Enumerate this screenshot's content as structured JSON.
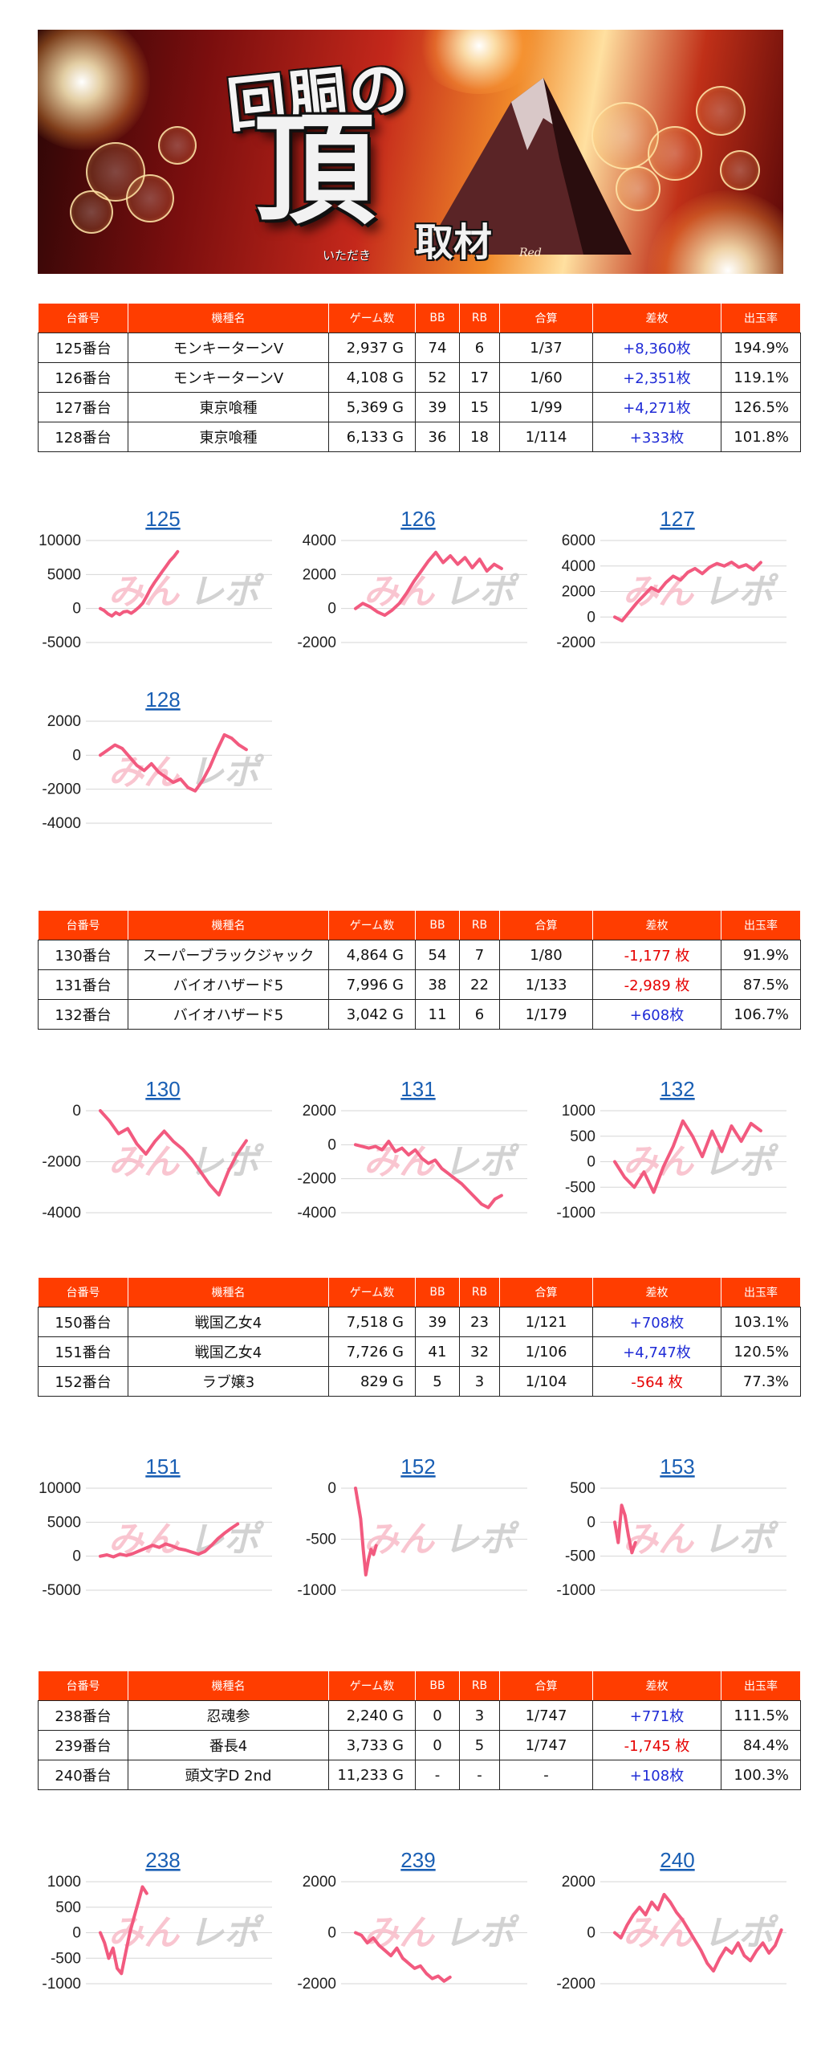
{
  "banner": {
    "title_line1": "回胴の",
    "title_big": "頂",
    "title_sub": "取材",
    "ruby": "いただき",
    "tag": "Red"
  },
  "columns": [
    "台番号",
    "機種名",
    "ゲーム数",
    "BB",
    "RB",
    "合算",
    "差枚",
    "出玉率"
  ],
  "watermark": {
    "part1": "みん",
    "part2": "レポ"
  },
  "colors": {
    "header": "#ff3d00",
    "positive": "#1f2bd6",
    "negative": "#e60000",
    "line": "#f25a7f",
    "link": "#1a5fb4"
  },
  "groups": [
    {
      "rows": [
        {
          "machine_no": "125番台",
          "name": "モンキーターンV",
          "games": "2,937 G",
          "bb": "74",
          "rb": "6",
          "combined": "1/37",
          "diff": "+8,360枚",
          "payout": "194.9%",
          "sign": "pos"
        },
        {
          "machine_no": "126番台",
          "name": "モンキーターンV",
          "games": "4,108 G",
          "bb": "52",
          "rb": "17",
          "combined": "1/60",
          "diff": "+2,351枚",
          "payout": "119.1%",
          "sign": "pos"
        },
        {
          "machine_no": "127番台",
          "name": "東京喰種",
          "games": "5,369 G",
          "bb": "39",
          "rb": "15",
          "combined": "1/99",
          "diff": "+4,271枚",
          "payout": "126.5%",
          "sign": "pos"
        },
        {
          "machine_no": "128番台",
          "name": "東京喰種",
          "games": "6,133 G",
          "bb": "36",
          "rb": "18",
          "combined": "1/114",
          "diff": "+333枚",
          "payout": "101.8%",
          "sign": "pos"
        }
      ],
      "charts": [
        {
          "title": "125",
          "ticks": [
            "10000",
            "5000",
            "0",
            "-5000"
          ],
          "ylim": [
            -5000,
            10000
          ],
          "points": [
            0,
            -300,
            -800,
            -1100,
            -600,
            -900,
            -500,
            -400,
            -700,
            -300,
            200,
            800,
            1800,
            2900,
            3800,
            4600,
            5400,
            6200,
            7000,
            7600,
            8360
          ]
        },
        {
          "title": "126",
          "ticks": [
            "4000",
            "2000",
            "0",
            "-2000"
          ],
          "ylim": [
            -2000,
            4000
          ],
          "points": [
            0,
            300,
            100,
            -200,
            -400,
            -100,
            300,
            900,
            1600,
            2200,
            2800,
            3300,
            2700,
            3100,
            2600,
            3000,
            2400,
            2900,
            2200,
            2600,
            2351
          ]
        },
        {
          "title": "127",
          "ticks": [
            "6000",
            "4000",
            "2000",
            "0",
            "-2000"
          ],
          "ylim": [
            -2000,
            6000
          ],
          "points": [
            0,
            -300,
            400,
            1100,
            1700,
            2300,
            2000,
            2700,
            3200,
            2900,
            3500,
            3800,
            3400,
            3900,
            4200,
            4000,
            4300,
            3900,
            4100,
            3700,
            4271
          ]
        },
        {
          "title": "128",
          "ticks": [
            "2000",
            "0",
            "-2000",
            "-4000"
          ],
          "ylim": [
            -4000,
            2000
          ],
          "points": [
            0,
            300,
            600,
            400,
            -100,
            -600,
            -900,
            -500,
            -1000,
            -1300,
            -1600,
            -1400,
            -1900,
            -2100,
            -1500,
            -700,
            300,
            1200,
            1000,
            600,
            333
          ]
        }
      ]
    },
    {
      "rows": [
        {
          "machine_no": "130番台",
          "name": "スーパーブラックジャック",
          "games": "4,864 G",
          "bb": "54",
          "rb": "7",
          "combined": "1/80",
          "diff": "-1,177 枚",
          "payout": "91.9%",
          "sign": "neg"
        },
        {
          "machine_no": "131番台",
          "name": "バイオハザード5",
          "games": "7,996 G",
          "bb": "38",
          "rb": "22",
          "combined": "1/133",
          "diff": "-2,989 枚",
          "payout": "87.5%",
          "sign": "neg"
        },
        {
          "machine_no": "132番台",
          "name": "バイオハザード5",
          "games": "3,042 G",
          "bb": "11",
          "rb": "6",
          "combined": "1/179",
          "diff": "+608枚",
          "payout": "106.7%",
          "sign": "pos"
        }
      ],
      "charts": [
        {
          "title": "130",
          "ticks": [
            "0",
            "-2000",
            "-4000"
          ],
          "ylim": [
            -4000,
            0
          ],
          "points": [
            0,
            -400,
            -900,
            -700,
            -1300,
            -1700,
            -1200,
            -800,
            -1200,
            -1500,
            -1900,
            -2400,
            -2900,
            -3300,
            -2400,
            -1700,
            -1177
          ]
        },
        {
          "title": "131",
          "ticks": [
            "2000",
            "0",
            "-2000",
            "-4000"
          ],
          "ylim": [
            -4000,
            2000
          ],
          "points": [
            0,
            -100,
            -200,
            -100,
            -300,
            200,
            -400,
            -200,
            -600,
            -300,
            -800,
            -1100,
            -900,
            -1400,
            -1700,
            -2000,
            -2300,
            -2700,
            -3100,
            -3500,
            -3700,
            -3200,
            -2989
          ]
        },
        {
          "title": "132",
          "ticks": [
            "1000",
            "500",
            "0",
            "-500",
            "-1000"
          ],
          "ylim": [
            -1000,
            1000
          ],
          "points": [
            0,
            -300,
            -500,
            -200,
            -600,
            -100,
            300,
            800,
            500,
            100,
            600,
            200,
            700,
            400,
            750,
            608
          ]
        }
      ]
    },
    {
      "rows": [
        {
          "machine_no": "150番台",
          "name": "戦国乙女4",
          "games": "7,518 G",
          "bb": "39",
          "rb": "23",
          "combined": "1/121",
          "diff": "+708枚",
          "payout": "103.1%",
          "sign": "pos"
        },
        {
          "machine_no": "151番台",
          "name": "戦国乙女4",
          "games": "7,726 G",
          "bb": "41",
          "rb": "32",
          "combined": "1/106",
          "diff": "+4,747枚",
          "payout": "120.5%",
          "sign": "pos"
        },
        {
          "machine_no": "152番台",
          "name": "ラブ嬢3",
          "games": "829 G",
          "bb": "5",
          "rb": "3",
          "combined": "1/104",
          "diff": "-564 枚",
          "payout": "77.3%",
          "sign": "neg"
        }
      ],
      "charts": [
        {
          "title": "151",
          "ticks": [
            "10000",
            "5000",
            "0",
            "-5000"
          ],
          "ylim": [
            -5000,
            10000
          ],
          "points": [
            0,
            200,
            -100,
            300,
            100,
            400,
            800,
            1200,
            1600,
            1300,
            1800,
            1500,
            1100,
            900,
            600,
            300,
            700,
            1600,
            2600,
            3400,
            4100,
            4747
          ]
        },
        {
          "title": "152",
          "ticks": [
            "0",
            "-500",
            "-1000"
          ],
          "ylim": [
            -1000,
            0
          ],
          "points": [
            0,
            -150,
            -300,
            -600,
            -850,
            -700,
            -600,
            -650,
            -564
          ]
        },
        {
          "title": "153",
          "ticks": [
            "500",
            "0",
            "-500",
            "-1000"
          ],
          "ylim": [
            -1000,
            500
          ],
          "points": [
            0,
            -300,
            250,
            100,
            -200,
            -450,
            -300
          ]
        }
      ]
    },
    {
      "rows": [
        {
          "machine_no": "238番台",
          "name": "忍魂参",
          "games": "2,240 G",
          "bb": "0",
          "rb": "3",
          "combined": "1/747",
          "diff": "+771枚",
          "payout": "111.5%",
          "sign": "pos"
        },
        {
          "machine_no": "239番台",
          "name": "番長4",
          "games": "3,733 G",
          "bb": "0",
          "rb": "5",
          "combined": "1/747",
          "diff": "-1,745 枚",
          "payout": "84.4%",
          "sign": "neg"
        },
        {
          "machine_no": "240番台",
          "name": "頭文字D 2nd",
          "games": "11,233 G",
          "bb": "-",
          "rb": "-",
          "combined": "-",
          "diff": "+108枚",
          "payout": "100.3%",
          "sign": "pos"
        }
      ],
      "charts": [
        {
          "title": "238",
          "ticks": [
            "1000",
            "500",
            "0",
            "-500",
            "-1000"
          ],
          "ylim": [
            -1000,
            1000
          ],
          "points": [
            0,
            -200,
            -500,
            -300,
            -700,
            -800,
            -400,
            0,
            300,
            600,
            900,
            771
          ]
        },
        {
          "title": "239",
          "ticks": [
            "2000",
            "0",
            "-2000"
          ],
          "ylim": [
            -2000,
            2000
          ],
          "points": [
            0,
            -100,
            -400,
            -200,
            -500,
            -700,
            -900,
            -600,
            -1000,
            -1200,
            -1400,
            -1300,
            -1600,
            -1800,
            -1700,
            -1900,
            -1745
          ]
        },
        {
          "title": "240",
          "ticks": [
            "2000",
            "0",
            "-2000"
          ],
          "ylim": [
            -2000,
            2000
          ],
          "points": [
            0,
            -200,
            300,
            700,
            1000,
            700,
            1200,
            900,
            1500,
            1200,
            800,
            500,
            100,
            -300,
            -700,
            -1200,
            -1500,
            -1000,
            -600,
            -800,
            -400,
            -900,
            -1100,
            -700,
            -400,
            -800,
            -500,
            108
          ]
        }
      ]
    }
  ]
}
